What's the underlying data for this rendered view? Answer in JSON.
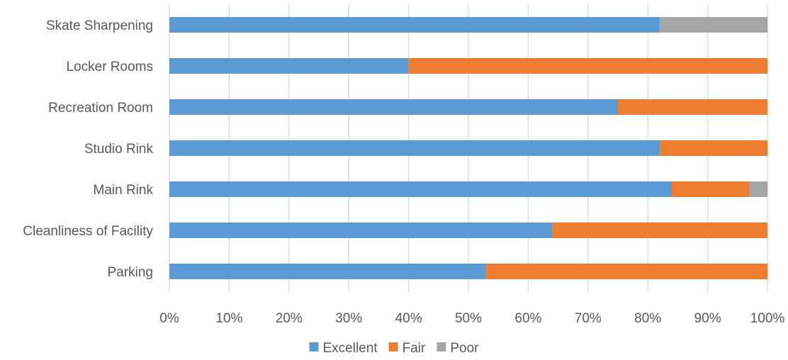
{
  "chart_data": {
    "type": "bar",
    "orientation": "horizontal",
    "stacked": true,
    "categories": [
      "Skate Sharpening",
      "Locker Rooms",
      "Recreation Room",
      "Studio Rink",
      "Main Rink",
      "Cleanliness of Facility",
      "Parking"
    ],
    "series": [
      {
        "name": "Excellent",
        "color": "#5B9BD5",
        "values": [
          0.82,
          0.4,
          0.75,
          0.82,
          0.84,
          0.64,
          0.53
        ]
      },
      {
        "name": "Fair",
        "color": "#ED7D31",
        "values": [
          0.0,
          0.6,
          0.25,
          0.18,
          0.13,
          0.36,
          0.47
        ]
      },
      {
        "name": "Poor",
        "color": "#A5A5A5",
        "values": [
          0.18,
          0.0,
          0.0,
          0.0,
          0.03,
          0.0,
          0.0
        ]
      }
    ],
    "xlim": [
      0,
      1
    ],
    "xticks": [
      "0%",
      "10%",
      "20%",
      "30%",
      "40%",
      "50%",
      "60%",
      "70%",
      "80%",
      "90%",
      "100%"
    ],
    "grid": true,
    "legend_position": "bottom"
  }
}
